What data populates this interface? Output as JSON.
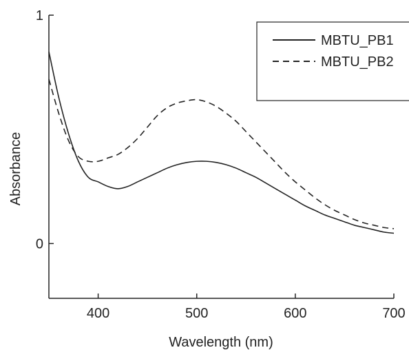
{
  "chart_data": {
    "type": "line",
    "title": "",
    "xlabel": "Wavelength (nm)",
    "ylabel": "Absorbance",
    "xlim": [
      350,
      700
    ],
    "ylim": [
      -0.24,
      1.0
    ],
    "x_ticks": [
      400,
      500,
      600,
      700
    ],
    "y_ticks": [
      0,
      1
    ],
    "grid": false,
    "legend_position": "top-right",
    "series": [
      {
        "name": "MBTU_PB1",
        "style": "solid",
        "color": "#222222",
        "x": [
          350,
          360,
          370,
          380,
          390,
          400,
          410,
          420,
          430,
          440,
          450,
          460,
          470,
          480,
          490,
          500,
          510,
          520,
          530,
          540,
          550,
          560,
          570,
          580,
          590,
          600,
          610,
          620,
          630,
          640,
          650,
          660,
          670,
          680,
          690,
          700
        ],
        "y": [
          0.84,
          0.64,
          0.48,
          0.36,
          0.29,
          0.27,
          0.25,
          0.24,
          0.25,
          0.27,
          0.29,
          0.31,
          0.33,
          0.345,
          0.355,
          0.36,
          0.36,
          0.355,
          0.345,
          0.33,
          0.31,
          0.29,
          0.265,
          0.24,
          0.215,
          0.19,
          0.165,
          0.145,
          0.125,
          0.11,
          0.095,
          0.08,
          0.07,
          0.06,
          0.05,
          0.045
        ]
      },
      {
        "name": "MBTU_PB2",
        "style": "dashed",
        "color": "#222222",
        "x": [
          350,
          360,
          370,
          380,
          390,
          400,
          410,
          420,
          430,
          440,
          450,
          460,
          470,
          480,
          490,
          500,
          510,
          520,
          530,
          540,
          550,
          560,
          570,
          580,
          590,
          600,
          610,
          620,
          630,
          640,
          650,
          660,
          670,
          680,
          690,
          700
        ],
        "y": [
          0.72,
          0.57,
          0.45,
          0.38,
          0.36,
          0.36,
          0.375,
          0.39,
          0.42,
          0.46,
          0.51,
          0.56,
          0.595,
          0.615,
          0.625,
          0.63,
          0.62,
          0.6,
          0.57,
          0.535,
          0.49,
          0.445,
          0.4,
          0.355,
          0.31,
          0.27,
          0.235,
          0.2,
          0.17,
          0.145,
          0.125,
          0.105,
          0.09,
          0.08,
          0.07,
          0.065
        ]
      }
    ]
  }
}
